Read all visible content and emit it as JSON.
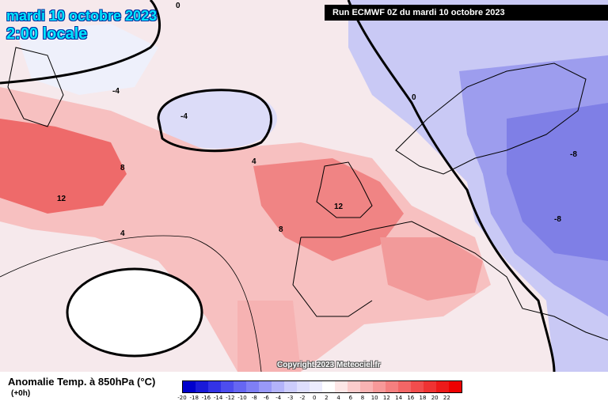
{
  "map": {
    "title_date": "mardi 10 octobre 2023",
    "title_time": "2:00 locale",
    "run_banner": "Run ECMWF 0Z du mardi 10 octobre 2023",
    "copyright": "Copyright 2023 Meteociel.fr",
    "contour_labels": [
      "0",
      "4",
      "8",
      "12",
      "-4",
      "-8",
      "0",
      "4",
      "8",
      "12",
      "-4",
      "-8"
    ]
  },
  "legend": {
    "title": "Anomalie Temp. à 850hPa (°C)",
    "subtitle": "(+0h)",
    "ticks": [
      "-20",
      "-18",
      "-16",
      "-14",
      "-12",
      "-10",
      "-8",
      "-6",
      "-4",
      "-3",
      "-2",
      "0",
      "2",
      "4",
      "6",
      "8",
      "10",
      "12",
      "14",
      "16",
      "18",
      "20",
      "22"
    ],
    "colors": [
      "#0000cc",
      "#1a1ad9",
      "#3333e6",
      "#4d4dee",
      "#6666f2",
      "#7f7ff5",
      "#9999f8",
      "#b3b3fa",
      "#ccccfc",
      "#dedefd",
      "#ececfe",
      "#ffffff",
      "#fde6e6",
      "#fbcccc",
      "#f9b3b3",
      "#f79999",
      "#f57f7f",
      "#f36666",
      "#f14d4d",
      "#ef3333",
      "#ed1a1a",
      "#ee0000"
    ],
    "palette": {
      "cold_strong": "#7070e0",
      "cold": "#a9a9f2",
      "cool": "#d6d6f8",
      "neutral": "#f6e9ec",
      "warm": "#f7bcbc",
      "warmer": "#f28888",
      "hot": "#ec5c5c",
      "land_line": "#000000"
    }
  }
}
